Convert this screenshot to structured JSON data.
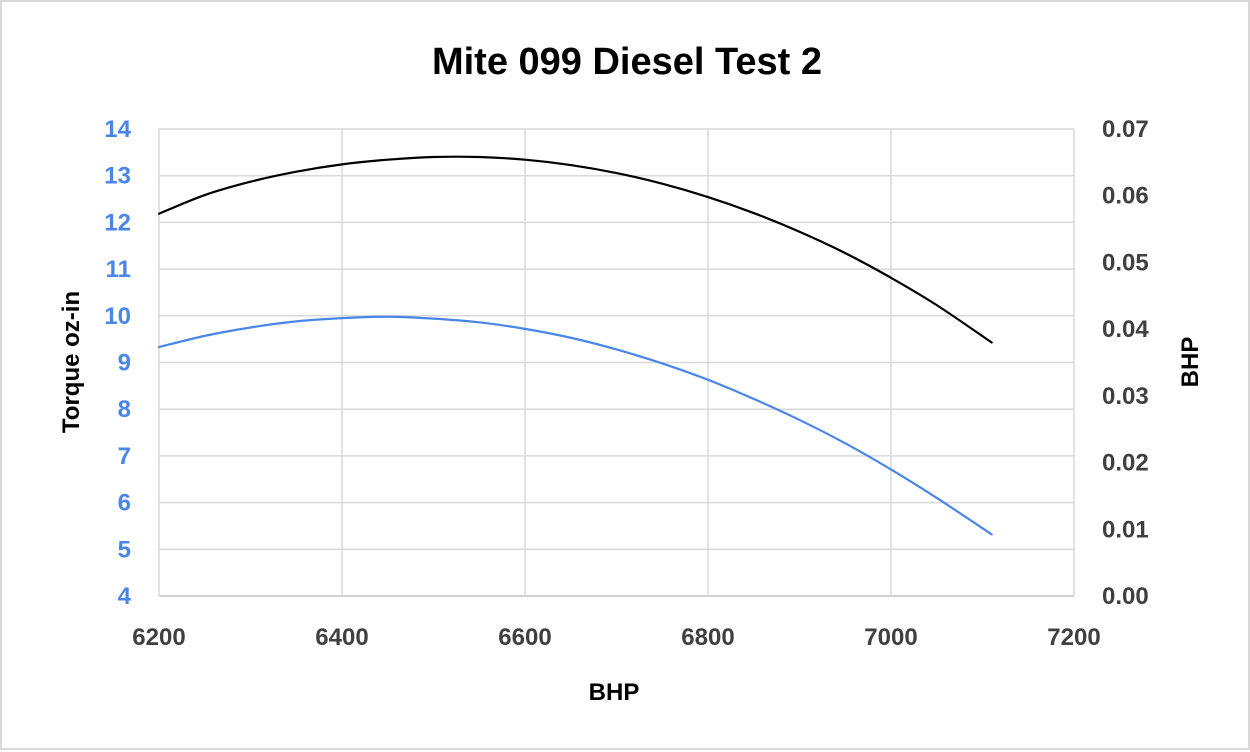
{
  "chart_data": {
    "type": "line",
    "title": "Mite 099 Diesel Test 2",
    "xlabel": "BHP",
    "ylabel": "Torque oz-in",
    "y2label": "BHP",
    "xlim": [
      6200,
      7200
    ],
    "ylim": [
      4,
      14
    ],
    "y2lim": [
      0,
      0.07
    ],
    "x_ticks": [
      "6200",
      "6400",
      "6600",
      "6800",
      "7000",
      "7200"
    ],
    "y_ticks": [
      "4",
      "5",
      "6",
      "7",
      "8",
      "9",
      "10",
      "11",
      "12",
      "13",
      "14"
    ],
    "y2_ticks": [
      "0.00",
      "0.01",
      "0.02",
      "0.03",
      "0.04",
      "0.05",
      "0.06",
      "0.07"
    ],
    "grid": true,
    "legend": "none",
    "series": [
      {
        "axis": "left",
        "color": "#4a86e8",
        "x": [
          6200,
          6250,
          6300,
          6350,
          6400,
          6450,
          6500,
          6550,
          6600,
          6650,
          6700,
          6750,
          6800,
          6850,
          6900,
          6950,
          7000,
          7050,
          7110
        ],
        "y": [
          9.33,
          9.57,
          9.75,
          9.88,
          9.95,
          9.98,
          9.94,
          9.86,
          9.72,
          9.53,
          9.28,
          8.98,
          8.63,
          8.22,
          7.77,
          7.27,
          6.71,
          6.1,
          5.32
        ]
      },
      {
        "axis": "right",
        "color": "#000000",
        "x": [
          6200,
          6250,
          6300,
          6350,
          6400,
          6450,
          6500,
          6550,
          6600,
          6650,
          6700,
          6750,
          6800,
          6850,
          6900,
          6950,
          7000,
          7050,
          7110
        ],
        "y": [
          0.0573,
          0.0601,
          0.0621,
          0.0636,
          0.0647,
          0.0654,
          0.0658,
          0.0658,
          0.0654,
          0.0646,
          0.0634,
          0.0618,
          0.0598,
          0.0574,
          0.0546,
          0.0514,
          0.0477,
          0.0436,
          0.038
        ]
      }
    ],
    "colors": {
      "left_axis_text": "#4a86e8",
      "right_axis_text": "#404040",
      "x_axis_text": "#404040"
    }
  }
}
